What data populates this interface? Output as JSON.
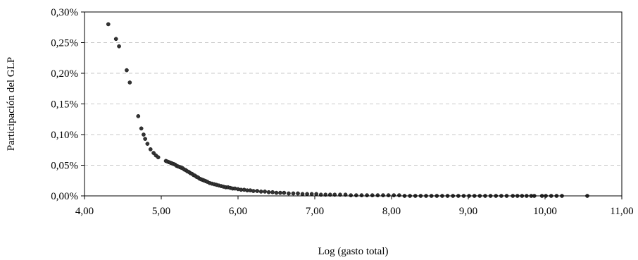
{
  "chart_data": {
    "type": "scatter",
    "title": "",
    "xlabel": "Log (gasto total)",
    "ylabel": "Participación del GLP",
    "xlim": [
      4.0,
      11.0
    ],
    "ylim": [
      0.0,
      0.3
    ],
    "x_ticks": [
      4,
      5,
      6,
      7,
      8,
      9,
      10,
      11
    ],
    "x_tick_labels": [
      "4,00",
      "5,00",
      "6,00",
      "7,00",
      "8,00",
      "9,00",
      "10,00",
      "11,00"
    ],
    "y_ticks": [
      0,
      0.05,
      0.1,
      0.15,
      0.2,
      0.25,
      0.3
    ],
    "y_tick_labels": [
      "0,00%",
      "0,05%",
      "0,10%",
      "0,15%",
      "0,20%",
      "0,25%",
      "0,30%"
    ],
    "y_grid": true,
    "y_unit": "%",
    "marker_color": "#333333",
    "grid_color": "#c8c8c8",
    "series": [
      {
        "points": [
          [
            4.31,
            0.28
          ],
          [
            4.41,
            0.256
          ],
          [
            4.45,
            0.244
          ],
          [
            4.55,
            0.205
          ],
          [
            4.59,
            0.185
          ],
          [
            4.7,
            0.13
          ],
          [
            4.74,
            0.11
          ],
          [
            4.77,
            0.1
          ],
          [
            4.79,
            0.093
          ],
          [
            4.82,
            0.085
          ],
          [
            4.86,
            0.076
          ],
          [
            4.9,
            0.07
          ],
          [
            4.93,
            0.066
          ],
          [
            4.96,
            0.063
          ],
          [
            5.06,
            0.057
          ],
          [
            5.08,
            0.056
          ],
          [
            5.1,
            0.055
          ],
          [
            5.12,
            0.054
          ],
          [
            5.14,
            0.053
          ],
          [
            5.16,
            0.052
          ],
          [
            5.18,
            0.051
          ],
          [
            5.2,
            0.049
          ],
          [
            5.22,
            0.048
          ],
          [
            5.24,
            0.047
          ],
          [
            5.26,
            0.046
          ],
          [
            5.28,
            0.045
          ],
          [
            5.3,
            0.043
          ],
          [
            5.32,
            0.042
          ],
          [
            5.34,
            0.04
          ],
          [
            5.36,
            0.039
          ],
          [
            5.38,
            0.037
          ],
          [
            5.4,
            0.036
          ],
          [
            5.42,
            0.034
          ],
          [
            5.44,
            0.033
          ],
          [
            5.46,
            0.031
          ],
          [
            5.48,
            0.03
          ],
          [
            5.5,
            0.028
          ],
          [
            5.52,
            0.027
          ],
          [
            5.54,
            0.026
          ],
          [
            5.56,
            0.025
          ],
          [
            5.58,
            0.024
          ],
          [
            5.6,
            0.023
          ],
          [
            5.63,
            0.021
          ],
          [
            5.66,
            0.02
          ],
          [
            5.69,
            0.019
          ],
          [
            5.72,
            0.018
          ],
          [
            5.75,
            0.017
          ],
          [
            5.78,
            0.016
          ],
          [
            5.81,
            0.015
          ],
          [
            5.84,
            0.014
          ],
          [
            5.87,
            0.014
          ],
          [
            5.9,
            0.013
          ],
          [
            5.93,
            0.012
          ],
          [
            5.96,
            0.012
          ],
          [
            6.0,
            0.011
          ],
          [
            6.04,
            0.01
          ],
          [
            6.08,
            0.01
          ],
          [
            6.12,
            0.009
          ],
          [
            6.16,
            0.009
          ],
          [
            6.2,
            0.008
          ],
          [
            6.25,
            0.008
          ],
          [
            6.3,
            0.007
          ],
          [
            6.35,
            0.007
          ],
          [
            6.4,
            0.006
          ],
          [
            6.45,
            0.006
          ],
          [
            6.5,
            0.005
          ],
          [
            6.55,
            0.005
          ],
          [
            6.6,
            0.005
          ],
          [
            6.66,
            0.004
          ],
          [
            6.72,
            0.004
          ],
          [
            6.78,
            0.004
          ],
          [
            6.84,
            0.003
          ],
          [
            6.9,
            0.003
          ],
          [
            6.96,
            0.003
          ],
          [
            7.02,
            0.003
          ],
          [
            7.08,
            0.002
          ],
          [
            7.14,
            0.002
          ],
          [
            7.2,
            0.002
          ],
          [
            7.26,
            0.002
          ],
          [
            7.33,
            0.002
          ],
          [
            7.4,
            0.002
          ],
          [
            7.47,
            0.001
          ],
          [
            7.54,
            0.001
          ],
          [
            7.61,
            0.001
          ],
          [
            7.68,
            0.001
          ],
          [
            7.75,
            0.001
          ],
          [
            7.82,
            0.001
          ],
          [
            7.89,
            0.001
          ],
          [
            7.96,
            0.001
          ],
          [
            8.03,
            0.001
          ],
          [
            8.1,
            0.001
          ],
          [
            8.17,
            0.0
          ],
          [
            8.24,
            0.0
          ],
          [
            8.31,
            0.0
          ],
          [
            8.38,
            0.0
          ],
          [
            8.45,
            0.0
          ],
          [
            8.52,
            0.0
          ],
          [
            8.59,
            0.0
          ],
          [
            8.66,
            0.0
          ],
          [
            8.73,
            0.0
          ],
          [
            8.8,
            0.0
          ],
          [
            8.87,
            0.0
          ],
          [
            8.94,
            0.0
          ],
          [
            9.01,
            0.0
          ],
          [
            9.08,
            0.0
          ],
          [
            9.15,
            0.0
          ],
          [
            9.22,
            0.0
          ],
          [
            9.29,
            0.0
          ],
          [
            9.36,
            0.0
          ],
          [
            9.43,
            0.0
          ],
          [
            9.5,
            0.0
          ],
          [
            9.58,
            0.0
          ],
          [
            9.64,
            0.0
          ],
          [
            9.7,
            0.0
          ],
          [
            9.76,
            0.0
          ],
          [
            9.82,
            0.0
          ],
          [
            9.86,
            0.0
          ],
          [
            9.96,
            0.0
          ],
          [
            10.01,
            0.0
          ],
          [
            10.08,
            0.0
          ],
          [
            10.15,
            0.0
          ],
          [
            10.22,
            0.0
          ],
          [
            10.55,
            0.0
          ]
        ]
      }
    ]
  }
}
